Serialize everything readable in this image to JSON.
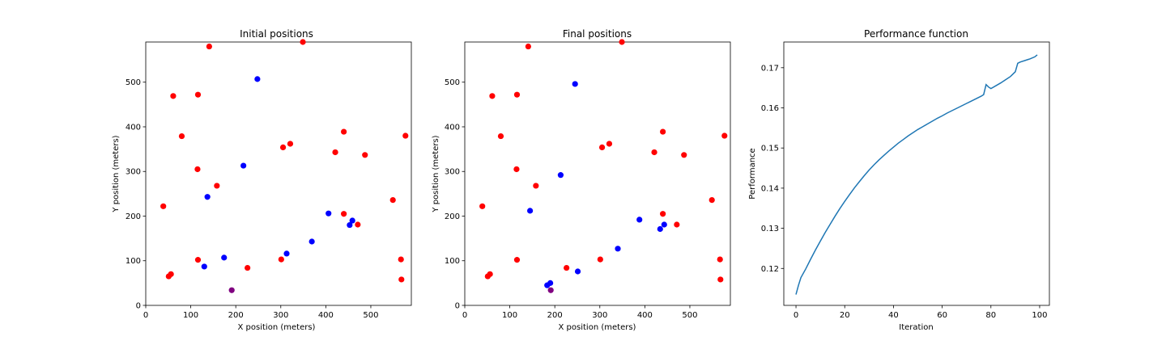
{
  "colors": {
    "red": "#ff0000",
    "blue": "#0000ff",
    "purple": "#800080",
    "line": "#1f77b4"
  },
  "chart_data": [
    {
      "type": "scatter",
      "title": "Initial positions",
      "xlabel": "X position (meters)",
      "ylabel": "Y position (meters)",
      "xlim": [
        0,
        590
      ],
      "ylim": [
        0,
        590
      ],
      "xticks": [
        0,
        100,
        200,
        300,
        400,
        500
      ],
      "yticks": [
        0,
        100,
        200,
        300,
        400,
        500
      ],
      "grid": false,
      "series": [
        {
          "color": "red",
          "points": [
            [
              141,
              580
            ],
            [
              349,
              590
            ],
            [
              61,
              469
            ],
            [
              116,
              472
            ],
            [
              80,
              379
            ],
            [
              440,
              389
            ],
            [
              305,
              354
            ],
            [
              321,
              362
            ],
            [
              421,
              343
            ],
            [
              487,
              337
            ],
            [
              577,
              380
            ],
            [
              115,
              305
            ],
            [
              158,
              268
            ],
            [
              39,
              222
            ],
            [
              549,
              236
            ],
            [
              440,
              205
            ],
            [
              471,
              181
            ],
            [
              116,
              102
            ],
            [
              301,
              103
            ],
            [
              226,
              84
            ],
            [
              56,
              70
            ],
            [
              51,
              65
            ],
            [
              567,
              103
            ],
            [
              568,
              58
            ]
          ]
        },
        {
          "color": "blue",
          "points": [
            [
              248,
              507
            ],
            [
              217,
              313
            ],
            [
              137,
              243
            ],
            [
              406,
              206
            ],
            [
              453,
              180
            ],
            [
              459,
              190
            ],
            [
              369,
              143
            ],
            [
              313,
              116
            ],
            [
              174,
              107
            ],
            [
              130,
              87
            ]
          ]
        },
        {
          "color": "purple",
          "points": [
            [
              191,
              34
            ]
          ]
        }
      ]
    },
    {
      "type": "scatter",
      "title": "Final positions",
      "xlabel": "X position (meters)",
      "ylabel": "Y position (meters)",
      "xlim": [
        0,
        590
      ],
      "ylim": [
        0,
        590
      ],
      "xticks": [
        0,
        100,
        200,
        300,
        400,
        500
      ],
      "yticks": [
        0,
        100,
        200,
        300,
        400,
        500
      ],
      "grid": false,
      "series": [
        {
          "color": "red",
          "points": [
            [
              141,
              580
            ],
            [
              349,
              590
            ],
            [
              61,
              469
            ],
            [
              116,
              472
            ],
            [
              80,
              379
            ],
            [
              440,
              389
            ],
            [
              305,
              354
            ],
            [
              321,
              362
            ],
            [
              421,
              343
            ],
            [
              487,
              337
            ],
            [
              577,
              380
            ],
            [
              115,
              305
            ],
            [
              158,
              268
            ],
            [
              39,
              222
            ],
            [
              549,
              236
            ],
            [
              440,
              205
            ],
            [
              471,
              181
            ],
            [
              116,
              102
            ],
            [
              301,
              103
            ],
            [
              226,
              84
            ],
            [
              56,
              70
            ],
            [
              51,
              65
            ],
            [
              567,
              103
            ],
            [
              568,
              58
            ]
          ]
        },
        {
          "color": "blue",
          "points": [
            [
              245,
              496
            ],
            [
              213,
              292
            ],
            [
              145,
              212
            ],
            [
              388,
              192
            ],
            [
              443,
              181
            ],
            [
              434,
              171
            ],
            [
              340,
              127
            ],
            [
              251,
              76
            ],
            [
              190,
              50
            ],
            [
              183,
              45
            ]
          ]
        },
        {
          "color": "purple",
          "points": [
            [
              191,
              34
            ]
          ]
        }
      ]
    },
    {
      "type": "line",
      "title": "Performance function",
      "xlabel": "Iteration",
      "ylabel": "Performance",
      "xlim": [
        -5,
        104
      ],
      "ylim": [
        0.1108,
        0.1764
      ],
      "xticks": [
        0,
        20,
        40,
        60,
        80,
        100
      ],
      "yticks": [
        0.12,
        0.13,
        0.14,
        0.15,
        0.16,
        0.17
      ],
      "grid": false,
      "series": [
        {
          "color": "line",
          "points": [
            [
              0,
              0.1135
            ],
            [
              1,
              0.1158
            ],
            [
              2,
              0.1177
            ],
            [
              4,
              0.1199
            ],
            [
              6,
              0.1223
            ],
            [
              8,
              0.1246
            ],
            [
              10,
              0.1268
            ],
            [
              12,
              0.129
            ],
            [
              14,
              0.131
            ],
            [
              16,
              0.133
            ],
            [
              18,
              0.1349
            ],
            [
              20,
              0.1367
            ],
            [
              22,
              0.1384
            ],
            [
              24,
              0.1401
            ],
            [
              26,
              0.1416
            ],
            [
              28,
              0.1431
            ],
            [
              30,
              0.1445
            ],
            [
              32,
              0.1458
            ],
            [
              34,
              0.147
            ],
            [
              36,
              0.1481
            ],
            [
              38,
              0.1492
            ],
            [
              40,
              0.1502
            ],
            [
              42,
              0.1512
            ],
            [
              44,
              0.1521
            ],
            [
              46,
              0.153
            ],
            [
              48,
              0.1538
            ],
            [
              50,
              0.1546
            ],
            [
              52,
              0.1553
            ],
            [
              54,
              0.156
            ],
            [
              56,
              0.1567
            ],
            [
              58,
              0.1574
            ],
            [
              60,
              0.158
            ],
            [
              62,
              0.1587
            ],
            [
              64,
              0.1593
            ],
            [
              66,
              0.1599
            ],
            [
              68,
              0.1605
            ],
            [
              70,
              0.1611
            ],
            [
              72,
              0.1617
            ],
            [
              74,
              0.1623
            ],
            [
              76,
              0.1629
            ],
            [
              77,
              0.1633
            ],
            [
              78,
              0.1658
            ],
            [
              79,
              0.1652
            ],
            [
              80,
              0.1648
            ],
            [
              82,
              0.1655
            ],
            [
              84,
              0.1662
            ],
            [
              86,
              0.167
            ],
            [
              88,
              0.1678
            ],
            [
              90,
              0.169
            ],
            [
              91,
              0.1711
            ],
            [
              92,
              0.1714
            ],
            [
              94,
              0.1718
            ],
            [
              96,
              0.1722
            ],
            [
              98,
              0.1727
            ],
            [
              99,
              0.1732
            ]
          ]
        }
      ]
    }
  ]
}
